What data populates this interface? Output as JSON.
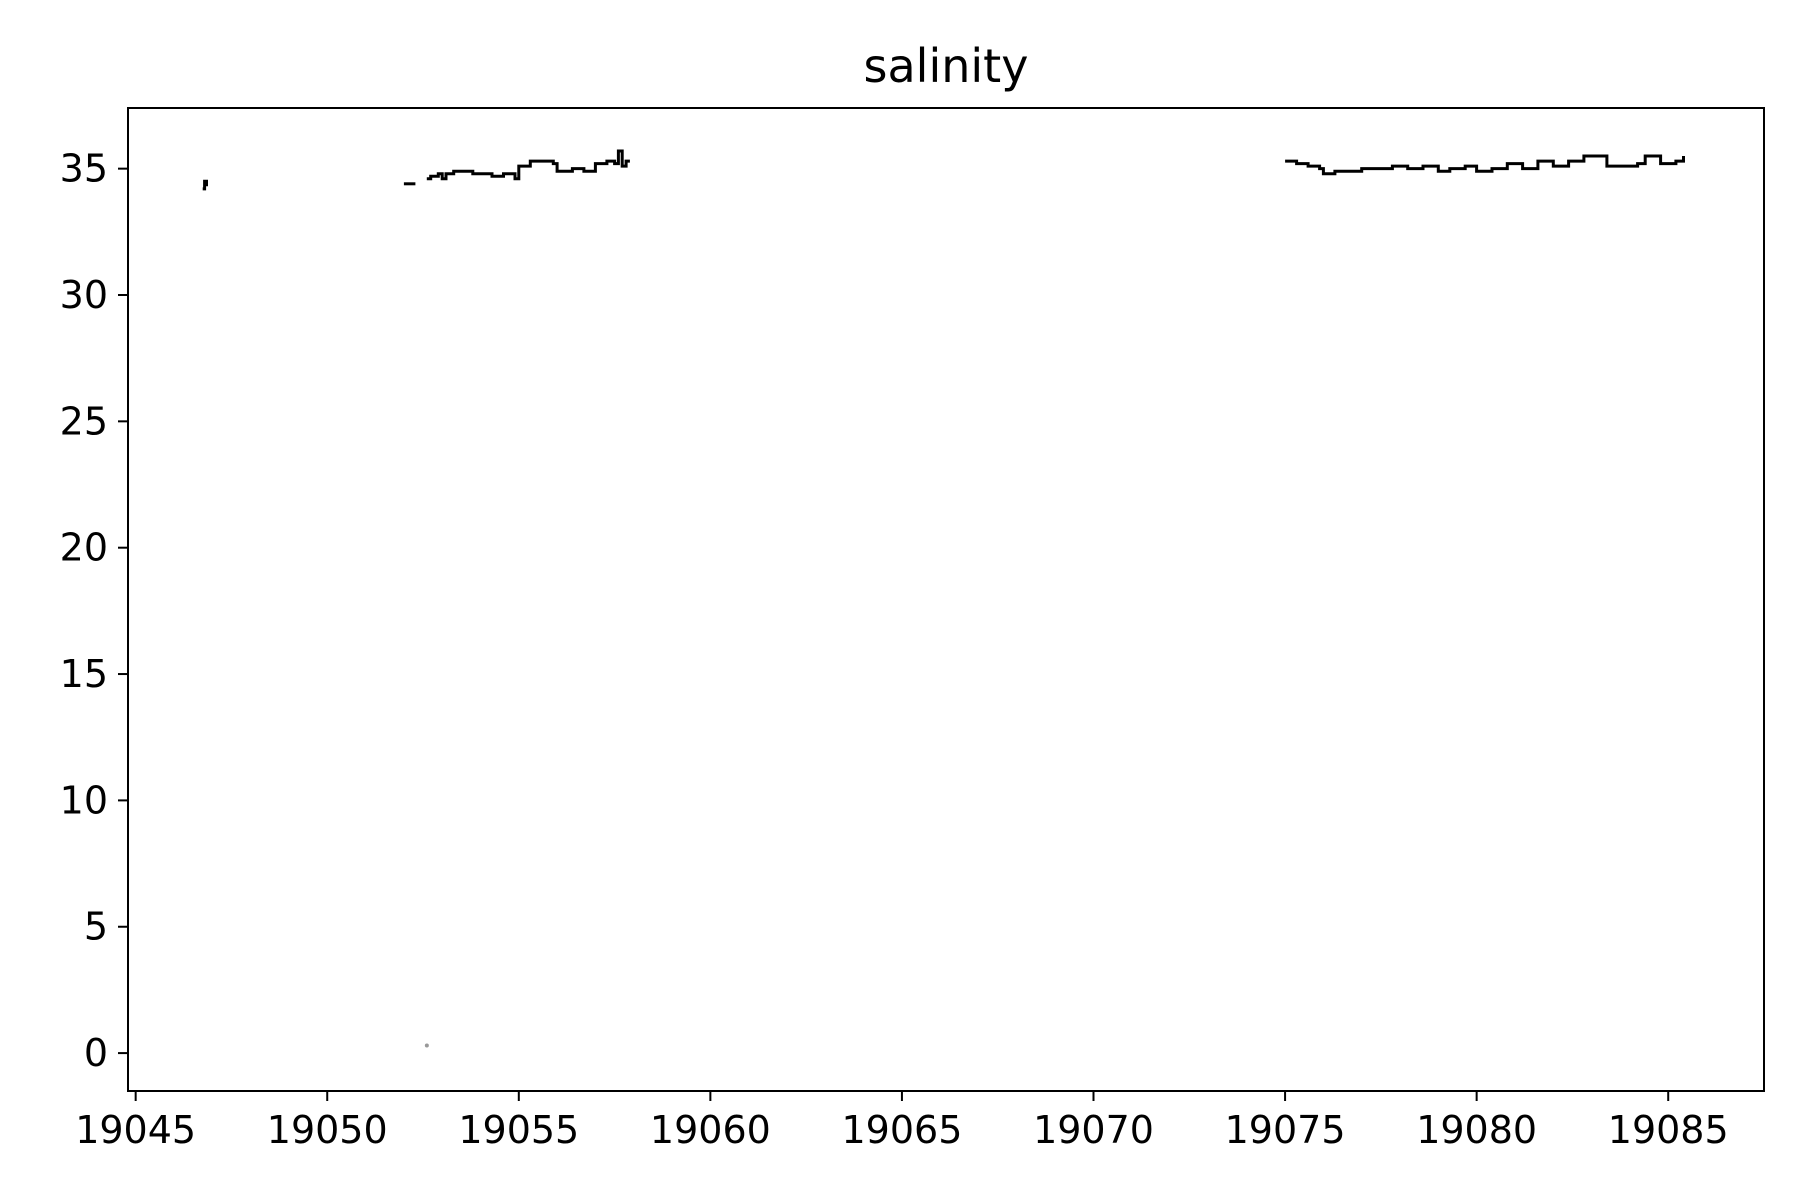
{
  "chart_data": {
    "type": "line",
    "title": "salinity",
    "xlabel": "",
    "ylabel": "",
    "xlim": [
      19044.8,
      19087.5
    ],
    "ylim": [
      -1.5,
      37.4
    ],
    "grid": false,
    "legend": "none",
    "xticks": [
      19045,
      19050,
      19055,
      19060,
      19065,
      19070,
      19075,
      19080,
      19085
    ],
    "yticks": [
      0,
      5,
      10,
      15,
      20,
      25,
      30,
      35
    ],
    "colors": {
      "line": "#000000",
      "outlier": "#999999",
      "axes": "#000000"
    },
    "series": [
      {
        "values": [
          [
            [
              19046.75,
              34.2
            ],
            [
              19046.8,
              34.5
            ],
            [
              19046.85,
              34.3
            ]
          ],
          [
            [
              19052.0,
              34.4
            ],
            [
              19052.3,
              34.4
            ]
          ],
          [
            [
              19052.6,
              34.6
            ],
            [
              19052.7,
              34.7
            ],
            [
              19052.9,
              34.8
            ],
            [
              19053.0,
              34.6
            ],
            [
              19053.1,
              34.8
            ],
            [
              19053.3,
              34.9
            ],
            [
              19053.5,
              34.9
            ],
            [
              19053.8,
              34.8
            ],
            [
              19054.0,
              34.8
            ],
            [
              19054.3,
              34.7
            ],
            [
              19054.6,
              34.8
            ],
            [
              19054.9,
              34.6
            ],
            [
              19055.0,
              35.1
            ],
            [
              19055.3,
              35.3
            ],
            [
              19055.6,
              35.3
            ],
            [
              19055.9,
              35.2
            ],
            [
              19056.0,
              34.9
            ],
            [
              19056.4,
              35.0
            ],
            [
              19056.7,
              34.9
            ],
            [
              19057.0,
              35.2
            ],
            [
              19057.3,
              35.3
            ],
            [
              19057.5,
              35.2
            ],
            [
              19057.6,
              35.7
            ],
            [
              19057.7,
              35.1
            ],
            [
              19057.8,
              35.3
            ],
            [
              19057.9,
              35.3
            ]
          ],
          [
            [
              19075.0,
              35.3
            ],
            [
              19075.3,
              35.2
            ],
            [
              19075.6,
              35.1
            ],
            [
              19075.9,
              35.0
            ],
            [
              19076.0,
              34.8
            ],
            [
              19076.3,
              34.9
            ],
            [
              19076.7,
              34.9
            ],
            [
              19077.0,
              35.0
            ],
            [
              19077.4,
              35.0
            ],
            [
              19077.8,
              35.1
            ],
            [
              19078.2,
              35.0
            ],
            [
              19078.6,
              35.1
            ],
            [
              19079.0,
              34.9
            ],
            [
              19079.3,
              35.0
            ],
            [
              19079.7,
              35.1
            ],
            [
              19080.0,
              34.9
            ],
            [
              19080.4,
              35.0
            ],
            [
              19080.8,
              35.2
            ],
            [
              19081.2,
              35.0
            ],
            [
              19081.6,
              35.3
            ],
            [
              19082.0,
              35.1
            ],
            [
              19082.4,
              35.3
            ],
            [
              19082.8,
              35.5
            ],
            [
              19083.2,
              35.5
            ],
            [
              19083.4,
              35.1
            ],
            [
              19083.8,
              35.1
            ],
            [
              19084.2,
              35.2
            ],
            [
              19084.4,
              35.5
            ],
            [
              19084.8,
              35.2
            ],
            [
              19085.2,
              35.3
            ],
            [
              19085.4,
              35.5
            ]
          ]
        ]
      }
    ],
    "outliers": [
      [
        19052.6,
        0.3
      ]
    ]
  }
}
